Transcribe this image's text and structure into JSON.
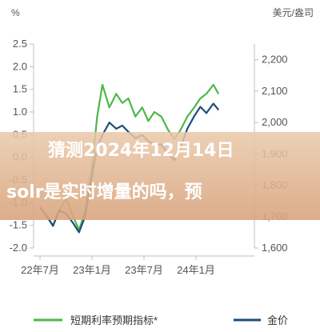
{
  "chart_data": {
    "type": "line",
    "left_unit": "%",
    "right_unit": "美元/盎司",
    "left_axis": {
      "ylim": [
        -2.0,
        2.5
      ],
      "ticks": [
        "2.5",
        "2.0",
        "1.5",
        "1.0",
        "0.5",
        "0.0",
        "-0.5",
        "-1.0",
        "-1.5",
        "-2.0"
      ],
      "tick_values": [
        2.5,
        2.0,
        1.5,
        1.0,
        0.5,
        0.0,
        -0.5,
        -1.0,
        -1.5,
        -2.0
      ]
    },
    "right_axis": {
      "ylim": [
        1600,
        2250
      ],
      "ticks": [
        "2,200",
        "2,100",
        "2,000",
        "1,900",
        "1,800",
        "1,700",
        "1,600"
      ],
      "tick_values": [
        2200,
        2100,
        2000,
        1900,
        1800,
        1700,
        1600
      ]
    },
    "x_axis": {
      "xlim": [
        0,
        24
      ],
      "tick_labels": [
        "22年7月",
        "23年1月",
        "23年7月",
        "24年1月"
      ],
      "tick_positions": [
        0,
        6,
        12,
        18
      ]
    },
    "grid": false,
    "legend_position": "bottom",
    "series": [
      {
        "name": "短期利率预期指标*",
        "axis": "left",
        "color": "#4cb848",
        "x": [
          0,
          0.8,
          1.5,
          2.2,
          3.0,
          3.8,
          4.5,
          5.2,
          6.0,
          6.6,
          7.2,
          8.0,
          8.8,
          9.5,
          10.2,
          11.0,
          11.8,
          12.5,
          13.2,
          14.0,
          14.8,
          15.5,
          16.2,
          17.0,
          17.8,
          18.5,
          19.2,
          20.0,
          20.6
        ],
        "y": [
          -1.1,
          -1.3,
          -1.5,
          -1.2,
          -0.9,
          -1.3,
          -1.6,
          -1.2,
          -0.2,
          0.9,
          1.6,
          1.1,
          1.4,
          1.2,
          1.3,
          0.9,
          1.1,
          0.8,
          1.0,
          0.9,
          0.6,
          0.4,
          0.6,
          0.9,
          1.1,
          1.3,
          1.4,
          1.6,
          1.4
        ]
      },
      {
        "name": "金价",
        "axis": "right",
        "color": "#1f4e79",
        "x": [
          0,
          0.8,
          1.5,
          2.2,
          3.0,
          3.8,
          4.5,
          5.2,
          6.0,
          6.6,
          7.2,
          8.0,
          8.8,
          9.5,
          10.2,
          11.0,
          11.8,
          12.5,
          13.2,
          14.0,
          14.8,
          15.5,
          16.2,
          17.0,
          17.8,
          18.5,
          19.2,
          20.0,
          20.6
        ],
        "y": [
          1730,
          1700,
          1670,
          1720,
          1710,
          1680,
          1650,
          1700,
          1830,
          1920,
          1960,
          2000,
          1980,
          1990,
          1970,
          1950,
          1960,
          1940,
          1930,
          1930,
          1900,
          1880,
          1920,
          1980,
          2020,
          2050,
          2030,
          2060,
          2040
        ]
      }
    ]
  },
  "overlay": {
    "line1": "猜测2024年12月14日",
    "line2": "solr是实时增量的吗，预"
  },
  "colors": {
    "axis": "#bfbfbf",
    "text": "#555555",
    "green": "#4cb848",
    "navy": "#1f4e79"
  }
}
